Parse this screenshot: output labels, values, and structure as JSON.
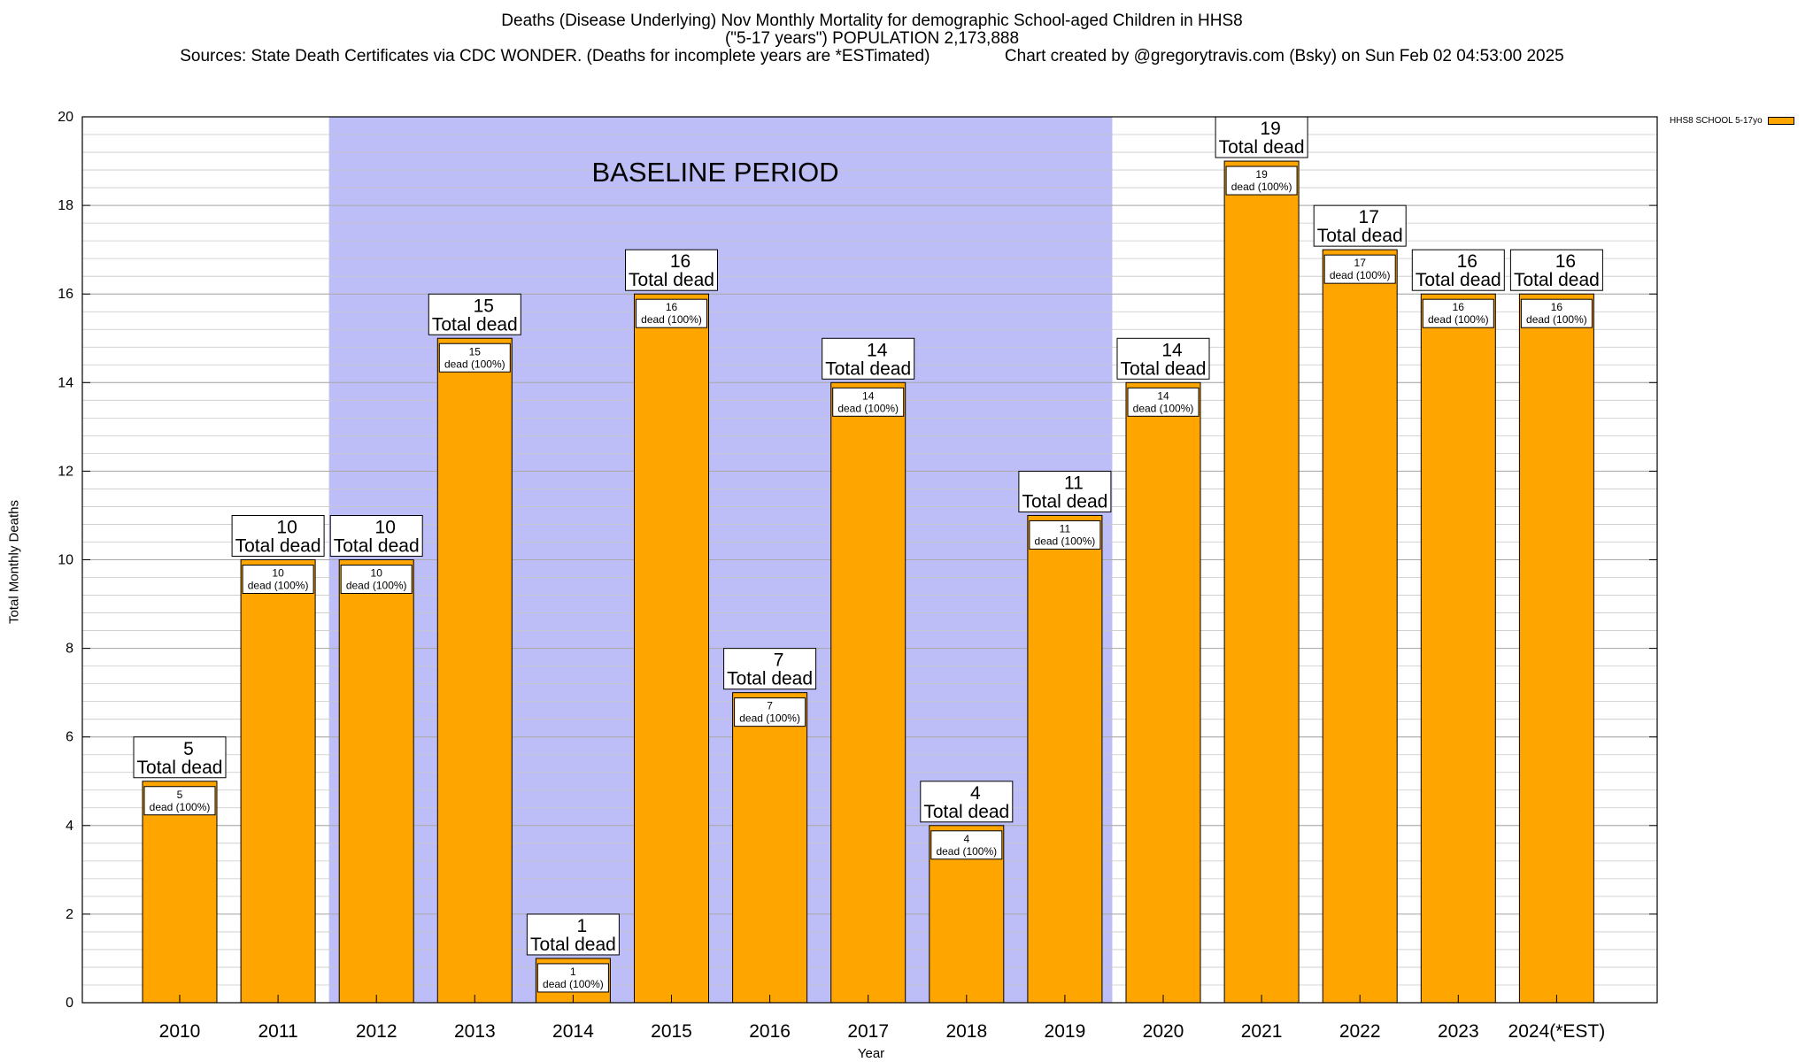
{
  "chart_data": {
    "type": "bar",
    "title_line1": "Deaths (Disease Underlying) Nov Monthly Mortality for demographic School-aged Children in HHS8",
    "title_line2": "(\"5-17 years\") POPULATION 2,173,888",
    "title_line3": "Sources: State Death Certificates via CDC WONDER. (Deaths for incomplete years are *ESTimated)                Chart created by @gregorytravis.com (Bsky) on Sun Feb 02 04:53:00 2025",
    "xlabel": "Year",
    "ylabel": "Total Monthly Deaths",
    "ylim": [
      0,
      20
    ],
    "y_major_ticks": [
      0,
      2,
      4,
      6,
      8,
      10,
      12,
      14,
      16,
      18,
      20
    ],
    "y_minor_step": 0.4,
    "grid": true,
    "legend_position": "top-right",
    "categories": [
      "2010",
      "2011",
      "2012",
      "2013",
      "2014",
      "2015",
      "2016",
      "2017",
      "2018",
      "2019",
      "2020",
      "2021",
      "2022",
      "2023",
      "2024(*EST)"
    ],
    "series": [
      {
        "name": "HHS8 SCHOOL 5-17yo",
        "color": "#ffa500",
        "values": [
          5,
          10,
          10,
          15,
          1,
          16,
          7,
          14,
          4,
          11,
          14,
          19,
          17,
          16,
          16
        ]
      }
    ],
    "total_label_suffix": "Total dead",
    "bar_label_suffix": "dead (100%)",
    "baseline_period": {
      "label": "BASELINE PERIOD",
      "start_category": "2012",
      "end_category": "2019",
      "color": "#bdbdf7"
    }
  }
}
